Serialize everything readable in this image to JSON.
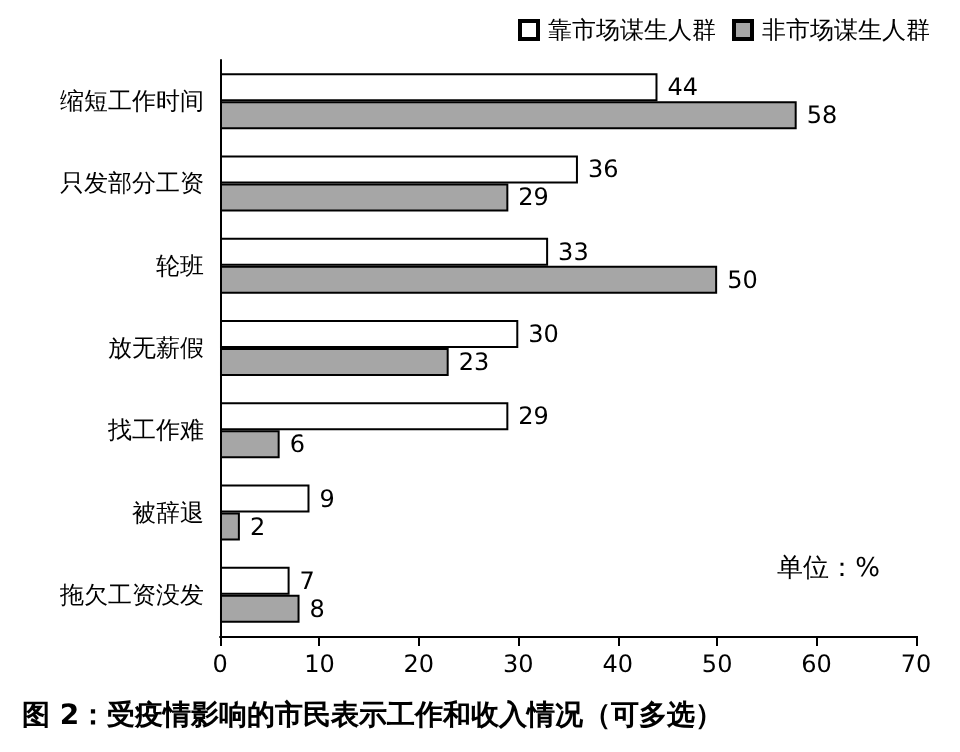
{
  "chart_data": {
    "type": "bar",
    "orientation": "horizontal",
    "title": "图 2：受疫情影响的市民表示工作和收入情况（可多选）",
    "categories": [
      "缩短工作时间",
      "只发部分工资",
      "轮班",
      "放无薪假",
      "找工作难",
      "被辞退",
      "拖欠工资没发"
    ],
    "series": [
      {
        "name": "靠市场谋生人群",
        "color": "#ffffff",
        "values": [
          44,
          36,
          33,
          30,
          29,
          9,
          7
        ]
      },
      {
        "name": "非市场谋生人群",
        "color": "#a6a6a6",
        "values": [
          58,
          29,
          50,
          23,
          6,
          2,
          8
        ]
      }
    ],
    "xlim": [
      0,
      70
    ],
    "xticks": [
      0,
      10,
      20,
      30,
      40,
      50,
      60,
      70
    ],
    "data_labels": true,
    "legend": "top right",
    "grid": false,
    "annotations": [
      "单位：%"
    ]
  }
}
